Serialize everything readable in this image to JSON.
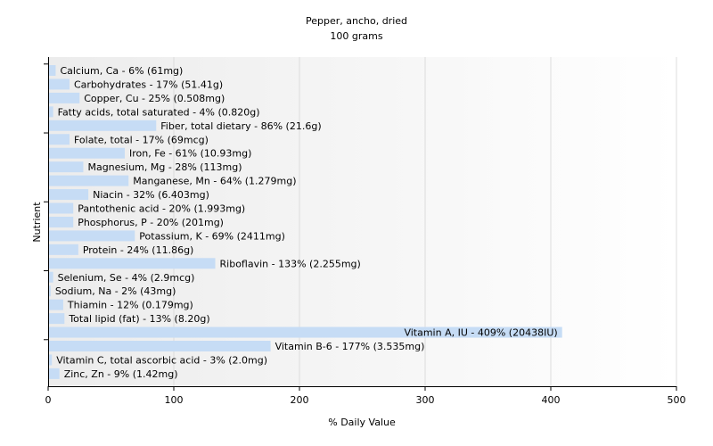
{
  "chart_data": {
    "type": "bar",
    "orientation": "horizontal",
    "title": "Pepper, ancho, dried",
    "subtitle": "100 grams",
    "xlabel": "% Daily Value",
    "ylabel": "Nutrient",
    "xlim": [
      0,
      500
    ],
    "xticks": [
      "0",
      "100",
      "200",
      "300",
      "400",
      "500"
    ],
    "grid": true,
    "legend": "none",
    "bar_color": "#c6dcf5",
    "categories": [
      "Calcium, Ca",
      "Carbohydrates",
      "Copper, Cu",
      "Fatty acids, total saturated",
      "Fiber, total dietary",
      "Folate, total",
      "Iron, Fe",
      "Magnesium, Mg",
      "Manganese, Mn",
      "Niacin",
      "Pantothenic acid",
      "Phosphorus, P",
      "Potassium, K",
      "Protein",
      "Riboflavin",
      "Selenium, Se",
      "Sodium, Na",
      "Thiamin",
      "Total lipid (fat)",
      "Vitamin A, IU",
      "Vitamin B-6",
      "Vitamin C, total ascorbic acid",
      "Zinc, Zn"
    ],
    "values": [
      6,
      17,
      25,
      4,
      86,
      17,
      61,
      28,
      64,
      32,
      20,
      20,
      69,
      24,
      133,
      4,
      2,
      12,
      13,
      409,
      177,
      3,
      9
    ],
    "data_labels": [
      "Calcium, Ca - 6% (61mg)",
      "Carbohydrates - 17% (51.41g)",
      "Copper, Cu - 25% (0.508mg)",
      "Fatty acids, total saturated - 4% (0.820g)",
      "Fiber, total dietary - 86% (21.6g)",
      "Folate, total - 17% (69mcg)",
      "Iron, Fe - 61% (10.93mg)",
      "Magnesium, Mg - 28% (113mg)",
      "Manganese, Mn - 64% (1.279mg)",
      "Niacin - 32% (6.403mg)",
      "Pantothenic acid - 20% (1.993mg)",
      "Phosphorus, P - 20% (201mg)",
      "Potassium, K - 69% (2411mg)",
      "Protein - 24% (11.86g)",
      "Riboflavin - 133% (2.255mg)",
      "Selenium, Se - 4% (2.9mcg)",
      "Sodium, Na - 2% (43mg)",
      "Thiamin - 12% (0.179mg)",
      "Total lipid (fat) - 13% (8.20g)",
      "Vitamin A, IU - 409% (20438IU)",
      "Vitamin B-6 - 177% (3.535mg)",
      "Vitamin C, total ascorbic acid - 3% (2.0mg)",
      "Zinc, Zn - 9% (1.42mg)"
    ]
  }
}
